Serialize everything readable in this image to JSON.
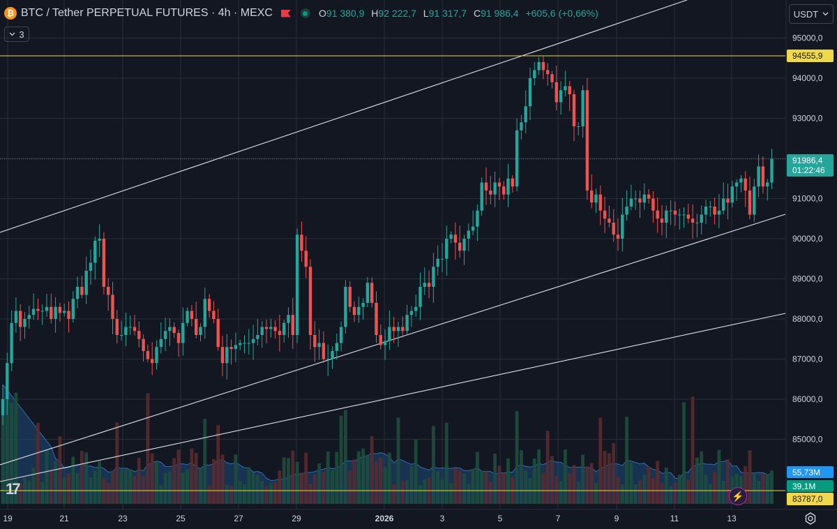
{
  "header": {
    "coin_glyph": "₿",
    "title": "BTC / Tether PERPETUAL FUTURES · 4h · MEXC",
    "ohlc": {
      "o_label": "O",
      "o_value": "91 380,9",
      "h_label": "H",
      "h_value": "92 222,7",
      "l_label": "L",
      "l_value": "91 317,7",
      "c_label": "C",
      "c_value": "91 986,4",
      "change": "+605,6 (+0,66%)"
    }
  },
  "indicator_toggle": {
    "label": "3",
    "icon": "chevron-down-icon"
  },
  "currency_selector": {
    "label": "USDT",
    "icon": "chevron-down-icon"
  },
  "logo_text": "17",
  "colors": {
    "background": "#131722",
    "grid": "#2a2e39",
    "up": "#26a69a",
    "down": "#ef5350",
    "horizontal_line": "#f0d84b",
    "trend_line": "#e0e3eb",
    "volume_ma": "#2962ff",
    "volume_ma_badge": "#2196f3",
    "volume_badge": "#089981",
    "price_badge": "#26a69a"
  },
  "chart_data": {
    "type": "candlestick",
    "interval": "4h",
    "price_axis": {
      "ticks": [
        95000,
        94000,
        93000,
        92000,
        91000,
        90000,
        89000,
        88000,
        87000,
        86000,
        85000
      ],
      "tick_labels": [
        "95000,0",
        "94000,0",
        "93000,0",
        "92000,0",
        "91000,0",
        "90000,0",
        "89000,0",
        "88000,0",
        "87000,0",
        "86000,0",
        "85000,0"
      ],
      "range": [
        83700,
        95400
      ]
    },
    "time_axis": {
      "labels": [
        "19",
        "21",
        "23",
        "25",
        "27",
        "29",
        "2026",
        "3",
        "5",
        "7",
        "9",
        "11",
        "13"
      ],
      "bold_label": "2026"
    },
    "current_price": {
      "value": 91986.4,
      "label": "91986,4",
      "countdown": "01:22:46"
    },
    "horizontal_line": {
      "value": 94555.9,
      "label": "94555,9"
    },
    "bottom_line": {
      "value": 83787.0,
      "label": "83787,0"
    },
    "volume_labels": {
      "ma_label": "55,73M",
      "vol_label": "39,1M"
    },
    "trend_lines": [
      {
        "from": [
          "18-00",
          90200
        ],
        "to": [
          "14-08",
          96500
        ]
      },
      {
        "from": [
          "18-00",
          83900
        ],
        "to": [
          "14-08",
          90600
        ]
      },
      {
        "from": [
          "18-00",
          84150
        ],
        "to": [
          "14-08",
          88200
        ]
      }
    ],
    "closes": [
      86000,
      86900,
      87900,
      88200,
      87800,
      88000,
      88100,
      88250,
      88200,
      88200,
      88300,
      88000,
      88300,
      88150,
      88200,
      88000,
      88500,
      88800,
      88600,
      89200,
      89400,
      89950,
      90000,
      88800,
      88600,
      88000,
      87600,
      87600,
      87800,
      87800,
      87700,
      87500,
      87200,
      87000,
      86900,
      87300,
      87500,
      87700,
      87800,
      87650,
      87400,
      87900,
      88200,
      88000,
      87600,
      87800,
      88500,
      88200,
      88000,
      87300,
      86900,
      87300,
      87250,
      87350,
      87400,
      87400,
      87400,
      87500,
      87600,
      87800,
      87750,
      87800,
      87700,
      87600,
      87900,
      88100,
      87600,
      90100,
      89700,
      89300,
      87600,
      87300,
      87400,
      87000,
      87000,
      87200,
      87400,
      87800,
      88800,
      88300,
      88100,
      88300,
      88400,
      88900,
      88400,
      87600,
      87350,
      87450,
      87800,
      87700,
      87800,
      87700,
      88100,
      88200,
      88300,
      88800,
      88900,
      88800,
      89300,
      89500,
      89500,
      90000,
      90100,
      89900,
      89700,
      90000,
      90200,
      90300,
      90700,
      91400,
      91200,
      91100,
      91400,
      91300,
      91100,
      91500,
      91300,
      92700,
      92900,
      93300,
      94000,
      94200,
      94400,
      94200,
      94100,
      93900,
      93400,
      93700,
      93800,
      93600,
      92800,
      92800,
      93700,
      91200,
      90900,
      91100,
      90700,
      90500,
      90400,
      90100,
      90000,
      90600,
      90800,
      91000,
      91000,
      90900,
      91100,
      91000,
      90700,
      90500,
      90400,
      90700,
      90700,
      90600,
      90600,
      90600,
      90500,
      90400,
      90400,
      90600,
      90800,
      90800,
      90600,
      90700,
      91000,
      90900,
      91300,
      91400,
      91500,
      91200,
      90600,
      91300,
      91800,
      91300,
      91400,
      91986
    ]
  }
}
